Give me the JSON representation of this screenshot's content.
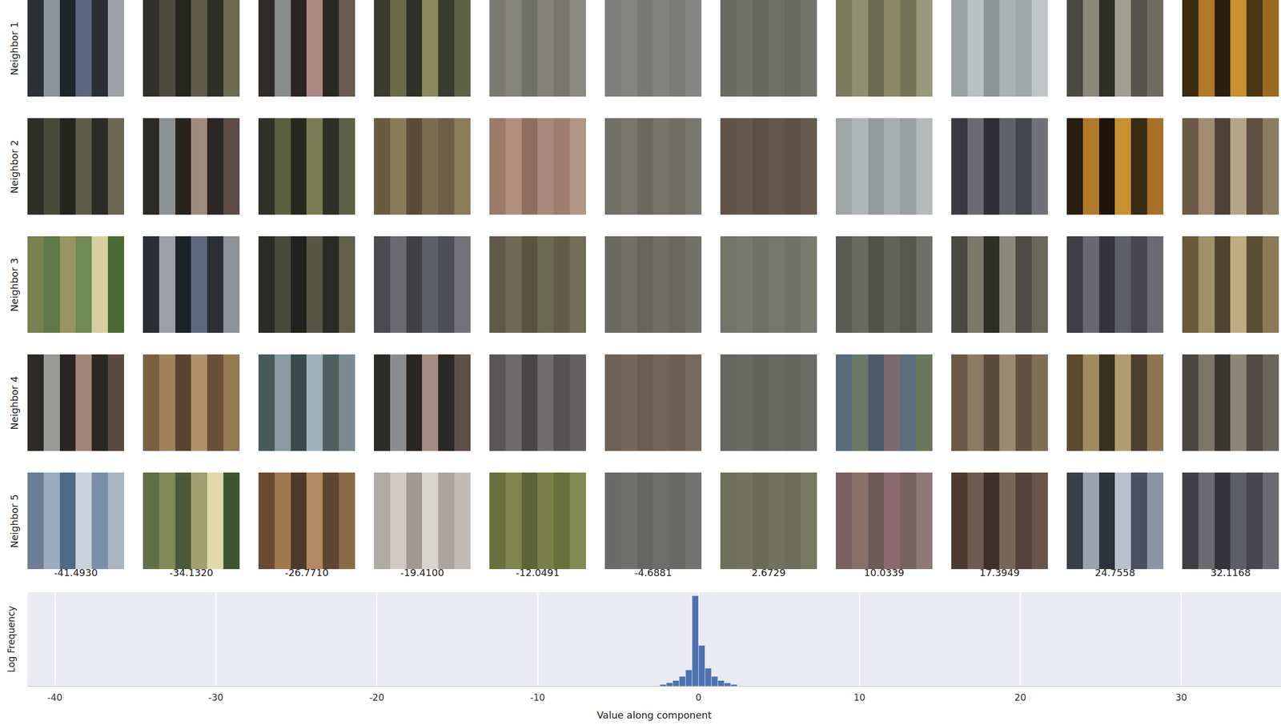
{
  "patches": {
    "column_labels": [
      "-41.4930",
      "-34.1320",
      "-26.7710",
      "-19.4100",
      "-12.0491",
      "-4.6881",
      "2.6729",
      "10.0339",
      "17.3949",
      "24.7558",
      "32.1168"
    ],
    "rows": [
      {
        "label": "Neighbor 1",
        "cells": [
          [
            "#2b2f36",
            "#8d9298",
            "#1f232b",
            "#5b6680",
            "#2a2d33",
            "#9fa3a8"
          ],
          [
            "#30302a",
            "#4d4c3c",
            "#25261f",
            "#5e5c48",
            "#2e2f27",
            "#6c6a52"
          ],
          [
            "#2e2b28",
            "#8a8c8c",
            "#2a2623",
            "#a88a80",
            "#2b2825",
            "#6a5a52"
          ],
          [
            "#3a3a2e",
            "#6a6a48",
            "#2f3027",
            "#8a8a5c",
            "#3a3b30",
            "#5f6048"
          ],
          [
            "#7a7a72",
            "#85857c",
            "#70706a",
            "#82827a",
            "#76766f",
            "#8a8a82"
          ],
          [
            "#7e7e7c",
            "#848482",
            "#787876",
            "#828280",
            "#7a7a78",
            "#868684"
          ],
          [
            "#6a6c64",
            "#707268",
            "#666860",
            "#6e7066",
            "#686a62",
            "#72746a"
          ],
          [
            "#7a7a5c",
            "#909070",
            "#6a6a50",
            "#8a8a68",
            "#727256",
            "#98987a"
          ],
          [
            "#9aa2a4",
            "#b8c0c2",
            "#8c9496",
            "#aab2b4",
            "#a0a8aa",
            "#c0c6c8"
          ],
          [
            "#4a4a40",
            "#8a8878",
            "#2e2e28",
            "#a09e8e",
            "#55534a",
            "#6e6c5e"
          ],
          [
            "#3a2a12",
            "#b07a28",
            "#2a1e0e",
            "#c8902e",
            "#4a3616",
            "#9a6a22"
          ]
        ]
      },
      {
        "label": "Neighbor 2",
        "cells": [
          [
            "#2e3028",
            "#4a4a3a",
            "#23251f",
            "#5c5a48",
            "#2b2c25",
            "#6a6852"
          ],
          [
            "#2c2a27",
            "#8c9194",
            "#272420",
            "#a08a80",
            "#2a2724",
            "#5d4c45"
          ],
          [
            "#2f3229",
            "#5a6040",
            "#262920",
            "#7a7c55",
            "#2d3027",
            "#5f6048"
          ],
          [
            "#6a5a40",
            "#8a7a58",
            "#5a4c38",
            "#7a6c50",
            "#6e5e45",
            "#8c7c5a"
          ],
          [
            "#9a7a68",
            "#b08e7a",
            "#8e6e5e",
            "#a8887a",
            "#9e7e6c",
            "#b29684"
          ],
          [
            "#707066",
            "#76766c",
            "#6a6a60",
            "#747468",
            "#6e6e64",
            "#78786e"
          ],
          [
            "#605448",
            "#66584c",
            "#5c5044",
            "#64564a",
            "#5e5246",
            "#685a4e"
          ],
          [
            "#a0a6a6",
            "#b0b6b6",
            "#949a9a",
            "#a8aeae",
            "#9aa0a0",
            "#b4baba"
          ],
          [
            "#3a3a40",
            "#6a6a70",
            "#2e2e34",
            "#606068",
            "#45454c",
            "#707078"
          ],
          [
            "#2a1e10",
            "#b07a28",
            "#1e150a",
            "#c89030",
            "#3a2a15",
            "#a87028"
          ],
          [
            "#6a5a48",
            "#a08c70",
            "#4e4236",
            "#b8a488",
            "#5e5040",
            "#8c7c64"
          ]
        ]
      },
      {
        "label": "Neighbor 3",
        "cells": [
          [
            "#7a8050",
            "#5f7a48",
            "#9a9560",
            "#6e8a55",
            "#d8d0a0",
            "#4a6a35"
          ],
          [
            "#2b2e35",
            "#9ca0a5",
            "#1e222a",
            "#5c6780",
            "#2c2f36",
            "#8e9398"
          ],
          [
            "#2a2b25",
            "#4a4a3b",
            "#21221d",
            "#585644",
            "#2a2b25",
            "#625f4c"
          ],
          [
            "#4a4a50",
            "#6a6a70",
            "#404045",
            "#5e5e66",
            "#4e4e55",
            "#727278"
          ],
          [
            "#5f5a48",
            "#6e6a55",
            "#58543f",
            "#6a6a50",
            "#625d4a",
            "#726e58"
          ],
          [
            "#6a6a62",
            "#707066",
            "#66665e",
            "#6e6e64",
            "#68685f",
            "#727268"
          ],
          [
            "#737569",
            "#77796d",
            "#6f7165",
            "#75776b",
            "#717367",
            "#797b6f"
          ],
          [
            "#5a5a55",
            "#6a6a64",
            "#52524d",
            "#62625c",
            "#585853",
            "#6e6e68"
          ],
          [
            "#4a4a40",
            "#7a7868",
            "#2e2e28",
            "#8a8878",
            "#4e4c42",
            "#6a6858"
          ],
          [
            "#3e3e45",
            "#68686e",
            "#34343a",
            "#5e5e66",
            "#46464c",
            "#6a6a72"
          ],
          [
            "#6a5a3a",
            "#a09068",
            "#4e4430",
            "#c0aa80",
            "#5a4e36",
            "#8a7a58"
          ]
        ]
      },
      {
        "label": "Neighbor 4",
        "cells": [
          [
            "#2c2a26",
            "#9a9a98",
            "#2a2622",
            "#a08478",
            "#2b2825",
            "#5a4a42"
          ],
          [
            "#7a6040",
            "#a0825a",
            "#5a4430",
            "#b09068",
            "#6a5038",
            "#94784f"
          ],
          [
            "#4a5a5a",
            "#8a9aa0",
            "#3a4a4a",
            "#a0b0b8",
            "#506060",
            "#7a8a90"
          ],
          [
            "#2d2b28",
            "#8a8c8e",
            "#2a2623",
            "#a48a82",
            "#2b2826",
            "#5e4e48"
          ],
          [
            "#5a5658",
            "#6e6a6c",
            "#4a4648",
            "#706c6e",
            "#555153",
            "#656163"
          ],
          [
            "#6e6258",
            "#74685e",
            "#6a5e54",
            "#72665c",
            "#6c6056",
            "#766a60"
          ],
          [
            "#666660",
            "#6a6a64",
            "#64645e",
            "#686862",
            "#656560",
            "#6c6c66"
          ],
          [
            "#5a6a78",
            "#6a7868",
            "#4e5a6a",
            "#7a6a70",
            "#5e6e7a",
            "#68785e"
          ],
          [
            "#6a5a48",
            "#8a7a62",
            "#5a4c3c",
            "#9a8a70",
            "#625242",
            "#7e6e58"
          ],
          [
            "#5a4a30",
            "#a08a60",
            "#3a3020",
            "#b09a70",
            "#4e4030",
            "#8a7650"
          ],
          [
            "#4a4640",
            "#7a7668",
            "#3a3630",
            "#8a8678",
            "#504c44",
            "#6a665a"
          ]
        ]
      },
      {
        "label": "Neighbor 5",
        "cells": [
          [
            "#6a7f95",
            "#9aacc0",
            "#4f6a85",
            "#c8d2dc",
            "#7a90a8",
            "#a8b4c0"
          ],
          [
            "#5f7048",
            "#7f8a58",
            "#4a5a38",
            "#a0a070",
            "#e0d8a8",
            "#3e5530"
          ],
          [
            "#6a4a30",
            "#a07850",
            "#4e3a28",
            "#b08a60",
            "#5e4530",
            "#8a6a48"
          ],
          [
            "#b0aaa5",
            "#cfcac5",
            "#a09a96",
            "#d8d4d0",
            "#aaa5a0",
            "#c0bbb6"
          ],
          [
            "#6a7040",
            "#7e8450",
            "#5e6438",
            "#788048",
            "#66703e",
            "#848a55"
          ],
          [
            "#6a6a68",
            "#70706e",
            "#666664",
            "#6e6e6c",
            "#686866",
            "#727270"
          ],
          [
            "#6e705c",
            "#727460",
            "#6a6c58",
            "#70725e",
            "#6c6e5a",
            "#767862"
          ],
          [
            "#7a6060",
            "#8a7068",
            "#6e5858",
            "#8a6a70",
            "#766060",
            "#907878"
          ],
          [
            "#4a3a30",
            "#6e5a4e",
            "#3e3028",
            "#7a6658",
            "#52423a",
            "#685448"
          ],
          [
            "#3a3e48",
            "#9aa2b0",
            "#2e323c",
            "#b8c0cc",
            "#4a5060",
            "#8a94a4"
          ],
          [
            "#3e3e45",
            "#6a6a70",
            "#34343a",
            "#5e5e66",
            "#46464c",
            "#6a6a72"
          ]
        ]
      }
    ]
  },
  "chart_data": {
    "type": "histogram",
    "xlabel": "Value along component",
    "ylabel": "Log Frequency",
    "bins": [
      -2.4,
      -2.0,
      -1.6,
      -1.2,
      -0.8,
      -0.4,
      0,
      0.4,
      0.8,
      1.2,
      1.6,
      2.0,
      2.4
    ],
    "counts": [
      0.1,
      0.2,
      0.33,
      0.57,
      0.95,
      5.3,
      2.39,
      1.05,
      0.57,
      0.33,
      0.19,
      0.1
    ],
    "color": "#4c72b0",
    "xlim": [
      -41.7,
      36.2
    ],
    "xticks": [
      -40,
      -30,
      -20,
      -10,
      0,
      10,
      20,
      30
    ],
    "ylim": [
      0,
      5.5
    ],
    "tick_labels": "x",
    "grid": true
  }
}
